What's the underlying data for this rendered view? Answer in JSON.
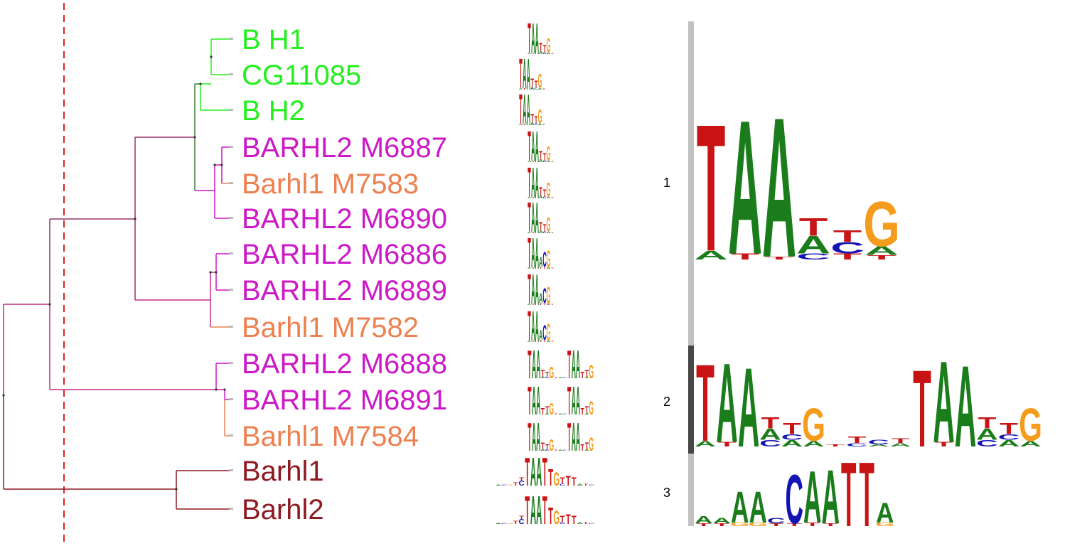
{
  "colors": {
    "green": "#22f01c",
    "magenta": "#cc18c6",
    "orange": "#ec8050",
    "darkred": "#8e1a22",
    "darkgreen": "#3f7a33",
    "plum": "#9a3068",
    "pink": "#c02c86",
    "cutoff": "#dd2222",
    "bar_light": "#c2c2c2",
    "bar_dark": "#474747",
    "A": "#1a7c1a",
    "C": "#1414b4",
    "G": "#f59c1c",
    "T": "#c81414"
  },
  "leaves": [
    {
      "label": "B H1",
      "color": "green"
    },
    {
      "label": "CG11085",
      "color": "green"
    },
    {
      "label": "B H2",
      "color": "green"
    },
    {
      "label": "BARHL2 M6887",
      "color": "magenta"
    },
    {
      "label": "Barhl1 M7583",
      "color": "orange"
    },
    {
      "label": "BARHL2 M6890",
      "color": "magenta"
    },
    {
      "label": "BARHL2 M6886",
      "color": "magenta"
    },
    {
      "label": "BARHL2 M6889",
      "color": "magenta"
    },
    {
      "label": "Barhl1 M7582",
      "color": "orange"
    },
    {
      "label": "BARHL2 M6888",
      "color": "magenta"
    },
    {
      "label": "BARHL2 M6891",
      "color": "magenta"
    },
    {
      "label": "Barhl1 M7584",
      "color": "orange"
    },
    {
      "label": "Barhl1",
      "color": "darkred"
    },
    {
      "label": "Barhl2",
      "color": "darkred"
    }
  ],
  "clusters": [
    {
      "number": "1",
      "bar_color": "bar_light"
    },
    {
      "number": "2",
      "bar_color": "bar_dark"
    },
    {
      "number": "3",
      "bar_color": "bar_light"
    }
  ],
  "consensus_logos": [
    {
      "cluster": "1",
      "motif": "TAATTG"
    },
    {
      "cluster": "2",
      "motif": "TAATTG..TAATTG"
    },
    {
      "cluster": "3",
      "motif": "AAAACAATTAA"
    }
  ]
}
